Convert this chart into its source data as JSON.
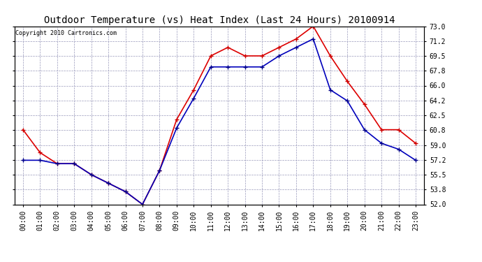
{
  "title": "Outdoor Temperature (vs) Heat Index (Last 24 Hours) 20100914",
  "copyright": "Copyright 2010 Cartronics.com",
  "x_labels": [
    "00:00",
    "01:00",
    "02:00",
    "03:00",
    "04:00",
    "05:00",
    "06:00",
    "07:00",
    "08:00",
    "09:00",
    "10:00",
    "11:00",
    "12:00",
    "13:00",
    "14:00",
    "15:00",
    "16:00",
    "17:00",
    "18:00",
    "19:00",
    "20:00",
    "21:00",
    "22:00",
    "23:00"
  ],
  "y_ticks": [
    52.0,
    53.8,
    55.5,
    57.2,
    59.0,
    60.8,
    62.5,
    64.2,
    66.0,
    67.8,
    69.5,
    71.2,
    73.0
  ],
  "ylim": [
    52.0,
    73.0
  ],
  "temp_red": [
    60.8,
    58.1,
    56.8,
    56.8,
    55.5,
    54.5,
    53.5,
    52.0,
    56.0,
    62.0,
    65.5,
    69.5,
    70.5,
    69.5,
    69.5,
    70.5,
    71.5,
    73.0,
    69.5,
    66.5,
    63.8,
    60.8,
    60.8,
    59.2
  ],
  "temp_blue": [
    57.2,
    57.2,
    56.8,
    56.8,
    55.5,
    54.5,
    53.5,
    52.0,
    56.0,
    61.0,
    64.5,
    68.2,
    68.2,
    68.2,
    68.2,
    69.5,
    70.5,
    71.5,
    65.5,
    64.2,
    60.8,
    59.2,
    58.5,
    57.2
  ],
  "line_color_red": "#dd0000",
  "line_color_blue": "#0000bb",
  "marker_color_red": "#cc0000",
  "marker_color_blue": "#000088",
  "bg_color": "#ffffff",
  "grid_color": "#9999bb",
  "title_fontsize": 10,
  "copyright_fontsize": 6,
  "tick_fontsize": 7,
  "fig_width": 6.9,
  "fig_height": 3.75,
  "dpi": 100
}
